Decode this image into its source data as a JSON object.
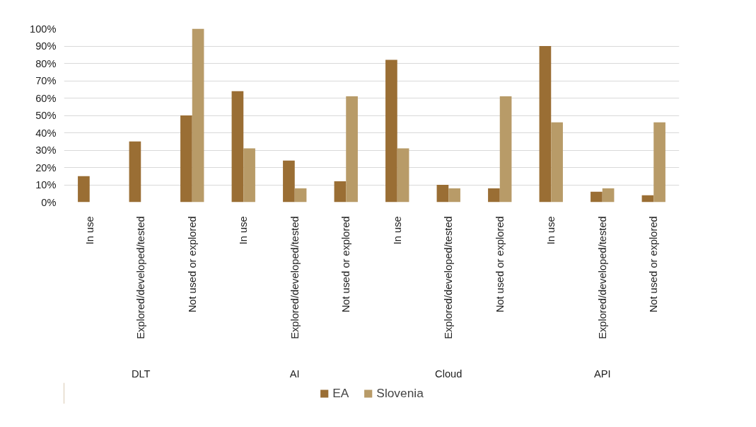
{
  "chart_data": {
    "type": "bar",
    "categories": [
      "In use",
      "Explored/developed/tested",
      "Not used or explored",
      "In use",
      "Explored/developed/tested",
      "Not used or explored",
      "In use",
      "Explored/developed/tested",
      "Not used or explored",
      "In use",
      "Explored/developed/tested",
      "Not used or explored"
    ],
    "series": [
      {
        "name": "EA",
        "color": "#9a6e34",
        "values": [
          15,
          35,
          50,
          64,
          24,
          12,
          82,
          10,
          8,
          90,
          6,
          4
        ]
      },
      {
        "name": "Slovenia",
        "color": "#b89b68",
        "values": [
          0,
          0,
          100,
          31,
          8,
          61,
          31,
          8,
          61,
          46,
          8,
          46
        ]
      }
    ],
    "annotations": [
      "DLT",
      "AI",
      "Cloud",
      "API"
    ],
    "ylim": [
      0,
      100
    ],
    "yticks": [
      {
        "value": 0,
        "label": "0%"
      },
      {
        "value": 10,
        "label": "10%"
      },
      {
        "value": 20,
        "label": "20%"
      },
      {
        "value": 30,
        "label": "30%"
      },
      {
        "value": 40,
        "label": "40%"
      },
      {
        "value": 50,
        "label": "50%"
      },
      {
        "value": 60,
        "label": "60%"
      },
      {
        "value": 70,
        "label": "70%"
      },
      {
        "value": 80,
        "label": "80%"
      },
      {
        "value": 90,
        "label": "90%"
      },
      {
        "value": 100,
        "label": "100%"
      }
    ],
    "grid": "y",
    "legend": "bottom"
  }
}
